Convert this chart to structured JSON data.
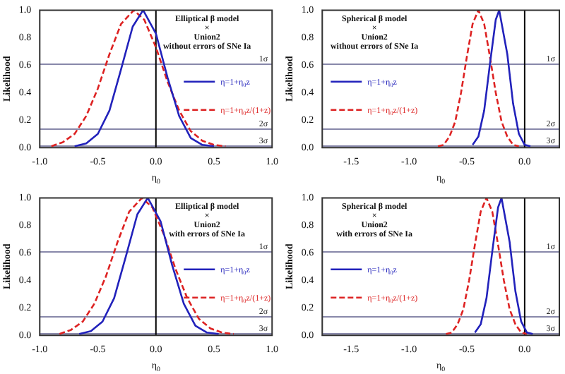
{
  "chart_data": [
    {
      "type": "line",
      "xlabel": "η$_{0}$",
      "ylabel": "Likelihood",
      "annotations": [
        "Elliptical β model",
        "×",
        "Union2",
        "without errors of SNe Ia"
      ],
      "legend": "right",
      "grid": false,
      "marker": "none",
      "xlim": [
        -1,
        1
      ],
      "xticks": [
        {
          "value": -1,
          "label": "-1.0"
        },
        {
          "value": -0.5,
          "label": "-0.5"
        },
        {
          "value": 0,
          "label": "0.0"
        },
        {
          "value": 0.5,
          "label": "0.5"
        },
        {
          "value": 1,
          "label": "1.0"
        }
      ],
      "ylim": [
        0,
        1
      ],
      "yticks": [
        {
          "value": 0,
          "label": "0.0"
        },
        {
          "value": 0.2,
          "label": "0.2"
        },
        {
          "value": 0.4,
          "label": "0.4"
        },
        {
          "value": 0.6,
          "label": "0.6"
        },
        {
          "value": 0.8,
          "label": "0.8"
        },
        {
          "value": 1,
          "label": "1.0"
        }
      ],
      "ref_lines": [
        {
          "axis": "y",
          "value": 0.607,
          "label": "1σ",
          "color": "#8888aa"
        },
        {
          "axis": "y",
          "value": 0.135,
          "label": "2σ",
          "color": "#8888aa"
        },
        {
          "axis": "y",
          "value": 0.011,
          "label": "3σ",
          "color": "#8888aa"
        },
        {
          "axis": "x",
          "value": 0,
          "color": "#000000"
        }
      ],
      "series": [
        {
          "name": "η=1+η$_{0}$z",
          "color": "#2222bb",
          "line_style": "solid",
          "x": [
            -0.7,
            -0.6,
            -0.5,
            -0.4,
            -0.3,
            -0.2,
            -0.11,
            0,
            0.1,
            0.2,
            0.3,
            0.4,
            0.5
          ],
          "values": [
            0.01,
            0.03,
            0.1,
            0.27,
            0.57,
            0.88,
            1,
            0.83,
            0.51,
            0.23,
            0.07,
            0.02,
            0.01
          ]
        },
        {
          "name": "η=1+η$_{0}$z/(1+z)",
          "color": "#dd2222",
          "line_style": "dashed",
          "x": [
            -0.9,
            -0.8,
            -0.7,
            -0.6,
            -0.5,
            -0.4,
            -0.3,
            -0.19,
            -0.1,
            0,
            0.1,
            0.2,
            0.3,
            0.4,
            0.5,
            0.6
          ],
          "values": [
            0.01,
            0.04,
            0.1,
            0.23,
            0.43,
            0.68,
            0.9,
            1,
            0.93,
            0.73,
            0.48,
            0.27,
            0.12,
            0.05,
            0.02,
            0.01
          ]
        }
      ]
    },
    {
      "type": "line",
      "xlabel": "η$_{0}$",
      "ylabel": "Likelihood",
      "annotations": [
        "Spherical β model",
        "×",
        "Union2",
        "without errors of SNe Ia"
      ],
      "legend": "left",
      "grid": false,
      "marker": "none",
      "xlim": [
        -1.75,
        0.3
      ],
      "xticks": [
        {
          "value": -1.5,
          "label": "-1.5"
        },
        {
          "value": -1,
          "label": "-1.0"
        },
        {
          "value": -0.5,
          "label": "-0.5"
        },
        {
          "value": 0,
          "label": "0.0"
        }
      ],
      "ylim": [
        0,
        1
      ],
      "yticks": [
        {
          "value": 0,
          "label": "0.0"
        },
        {
          "value": 0.2,
          "label": "0.2"
        },
        {
          "value": 0.4,
          "label": "0.4"
        },
        {
          "value": 0.6,
          "label": "0.6"
        },
        {
          "value": 0.8,
          "label": "0.8"
        },
        {
          "value": 1,
          "label": "1.0"
        }
      ],
      "ref_lines": [
        {
          "axis": "y",
          "value": 0.607,
          "label": "1σ",
          "color": "#8888aa"
        },
        {
          "axis": "y",
          "value": 0.135,
          "label": "2σ",
          "color": "#8888aa"
        },
        {
          "axis": "y",
          "value": 0.011,
          "label": "3σ",
          "color": "#8888aa"
        },
        {
          "axis": "x",
          "value": 0,
          "color": "#000000"
        }
      ],
      "series": [
        {
          "name": "η=1+η$_{0}$z",
          "color": "#2222bb",
          "line_style": "solid",
          "x": [
            -0.45,
            -0.4,
            -0.35,
            -0.3,
            -0.25,
            -0.22,
            -0.15,
            -0.1,
            -0.05,
            0,
            0.05
          ],
          "values": [
            0.02,
            0.08,
            0.27,
            0.61,
            0.93,
            1,
            0.68,
            0.32,
            0.1,
            0.02,
            0.01
          ]
        },
        {
          "name": "η=1+η$_{0}$z/(1+z)",
          "color": "#dd2222",
          "line_style": "dashed",
          "x": [
            -0.75,
            -0.7,
            -0.65,
            -0.6,
            -0.55,
            -0.5,
            -0.45,
            -0.4,
            -0.35,
            -0.3,
            -0.25,
            -0.2,
            -0.15,
            -0.1,
            -0.05
          ],
          "values": [
            0.01,
            0.02,
            0.08,
            0.19,
            0.4,
            0.66,
            0.9,
            1,
            0.9,
            0.66,
            0.4,
            0.19,
            0.08,
            0.02,
            0.01
          ]
        }
      ]
    },
    {
      "type": "line",
      "xlabel": "η$_{0}$",
      "ylabel": "Likelihood",
      "annotations": [
        "Elliptical β model",
        "×",
        "Union2",
        "with errors of SNe Ia"
      ],
      "legend": "right",
      "grid": false,
      "marker": "none",
      "xlim": [
        -1,
        1
      ],
      "xticks": [
        {
          "value": -1,
          "label": "-1.0"
        },
        {
          "value": -0.5,
          "label": "-0.5"
        },
        {
          "value": 0,
          "label": "0.0"
        },
        {
          "value": 0.5,
          "label": "0.5"
        },
        {
          "value": 1,
          "label": "1.0"
        }
      ],
      "ylim": [
        0,
        1
      ],
      "yticks": [
        {
          "value": 0,
          "label": "0.0"
        },
        {
          "value": 0.2,
          "label": "0.2"
        },
        {
          "value": 0.4,
          "label": "0.4"
        },
        {
          "value": 0.6,
          "label": "0.6"
        },
        {
          "value": 0.8,
          "label": "0.8"
        },
        {
          "value": 1,
          "label": "1.0"
        }
      ],
      "ref_lines": [
        {
          "axis": "y",
          "value": 0.607,
          "label": "1σ",
          "color": "#8888aa"
        },
        {
          "axis": "y",
          "value": 0.135,
          "label": "2σ",
          "color": "#8888aa"
        },
        {
          "axis": "y",
          "value": 0.011,
          "label": "3σ",
          "color": "#8888aa"
        },
        {
          "axis": "x",
          "value": 0,
          "color": "#000000"
        }
      ],
      "series": [
        {
          "name": "η=1+η$_{0}$z",
          "color": "#2222bb",
          "line_style": "solid",
          "x": [
            -0.66,
            -0.56,
            -0.46,
            -0.36,
            -0.26,
            -0.16,
            -0.07,
            0.04,
            0.14,
            0.24,
            0.34,
            0.44,
            0.54
          ],
          "values": [
            0.01,
            0.03,
            0.1,
            0.27,
            0.57,
            0.88,
            1,
            0.83,
            0.51,
            0.23,
            0.07,
            0.02,
            0.01
          ]
        },
        {
          "name": "η=1+η$_{0}$z/(1+z)",
          "color": "#dd2222",
          "line_style": "dashed",
          "x": [
            -0.83,
            -0.73,
            -0.63,
            -0.53,
            -0.43,
            -0.33,
            -0.23,
            -0.12,
            -0.03,
            0.07,
            0.17,
            0.27,
            0.37,
            0.47,
            0.57,
            0.67
          ],
          "values": [
            0.01,
            0.04,
            0.1,
            0.23,
            0.43,
            0.68,
            0.9,
            1,
            0.93,
            0.73,
            0.48,
            0.27,
            0.12,
            0.05,
            0.02,
            0.01
          ]
        }
      ]
    },
    {
      "type": "line",
      "xlabel": "η$_{0}$",
      "ylabel": "Likelihood",
      "annotations": [
        "Spherical β model",
        "×",
        "Union2",
        "with errors of SNe Ia"
      ],
      "legend": "left",
      "grid": false,
      "marker": "none",
      "xlim": [
        -1.75,
        0.3
      ],
      "xticks": [
        {
          "value": -1.5,
          "label": "-1.5"
        },
        {
          "value": -1,
          "label": "-1.0"
        },
        {
          "value": -0.5,
          "label": "-0.5"
        },
        {
          "value": 0,
          "label": "0.0"
        }
      ],
      "ylim": [
        0,
        1
      ],
      "yticks": [
        {
          "value": 0,
          "label": "0.0"
        },
        {
          "value": 0.2,
          "label": "0.2"
        },
        {
          "value": 0.4,
          "label": "0.4"
        },
        {
          "value": 0.6,
          "label": "0.6"
        },
        {
          "value": 0.8,
          "label": "0.8"
        },
        {
          "value": 1,
          "label": "1.0"
        }
      ],
      "ref_lines": [
        {
          "axis": "y",
          "value": 0.607,
          "label": "1σ",
          "color": "#8888aa"
        },
        {
          "axis": "y",
          "value": 0.135,
          "label": "2σ",
          "color": "#8888aa"
        },
        {
          "axis": "y",
          "value": 0.011,
          "label": "3σ",
          "color": "#8888aa"
        },
        {
          "axis": "x",
          "value": 0,
          "color": "#000000"
        }
      ],
      "series": [
        {
          "name": "η=1+η$_{0}$z",
          "color": "#2222bb",
          "line_style": "solid",
          "x": [
            -0.43,
            -0.38,
            -0.33,
            -0.28,
            -0.23,
            -0.2,
            -0.13,
            -0.08,
            -0.03,
            0.02,
            0.07
          ],
          "values": [
            0.02,
            0.08,
            0.27,
            0.61,
            0.93,
            1,
            0.68,
            0.32,
            0.1,
            0.02,
            0.01
          ]
        },
        {
          "name": "η=1+η$_{0}$z/(1+z)",
          "color": "#dd2222",
          "line_style": "dashed",
          "x": [
            -0.68,
            -0.63,
            -0.58,
            -0.53,
            -0.48,
            -0.43,
            -0.38,
            -0.33,
            -0.28,
            -0.23,
            -0.18,
            -0.13,
            -0.08,
            -0.03,
            0.02
          ],
          "values": [
            0.01,
            0.02,
            0.08,
            0.19,
            0.4,
            0.66,
            0.9,
            1,
            0.9,
            0.66,
            0.4,
            0.19,
            0.08,
            0.02,
            0.01
          ]
        }
      ]
    }
  ]
}
